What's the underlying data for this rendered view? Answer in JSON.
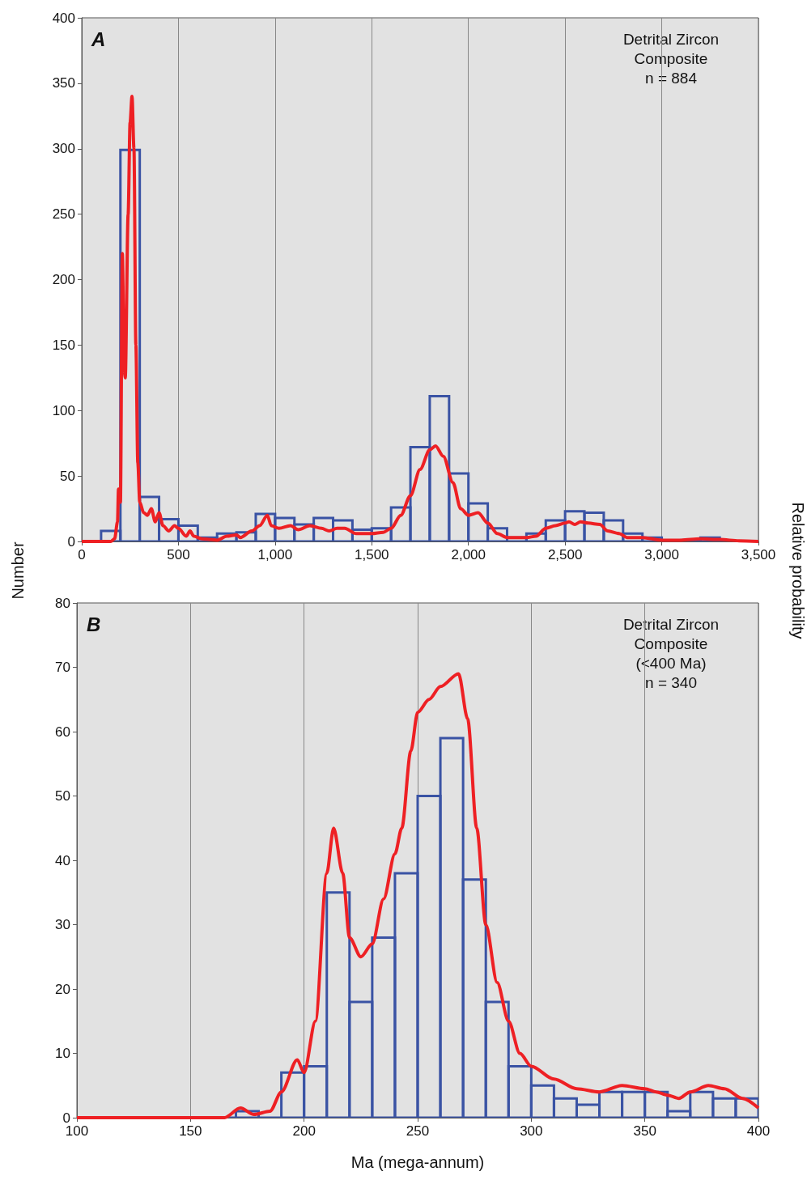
{
  "chart_data": [
    {
      "type": "histogram",
      "title": "A",
      "ylabel": "Number",
      "y2label": "Relative probability",
      "annotations": [
        "Detrital Zircon\nComposite\nn = 884"
      ],
      "bins": [
        0,
        100,
        200,
        300,
        400,
        500,
        600,
        700,
        800,
        900,
        1000,
        1100,
        1200,
        1300,
        1400,
        1500,
        1600,
        1700,
        1800,
        1900,
        2000,
        2100,
        2200,
        2300,
        2400,
        2500,
        2600,
        2700,
        2800,
        2900,
        3000,
        3100,
        3200,
        3300,
        3400,
        3500
      ],
      "series": [
        {
          "color": "#3a53a4",
          "values": [
            0,
            8,
            299,
            34,
            17,
            12,
            3,
            6,
            7,
            21,
            18,
            13,
            18,
            16,
            9,
            10,
            26,
            72,
            111,
            52,
            29,
            10,
            3,
            6,
            16,
            23,
            22,
            16,
            6,
            3,
            null,
            1,
            3,
            0,
            0
          ]
        },
        {
          "type": "line",
          "color": "#ee2024",
          "x": [
            0,
            150,
            170,
            185,
            190,
            200,
            210,
            220,
            225,
            240,
            250,
            260,
            270,
            280,
            290,
            300,
            320,
            340,
            360,
            380,
            400,
            420,
            450,
            480,
            500,
            540,
            560,
            580,
            620,
            700,
            750,
            800,
            820,
            880,
            920,
            960,
            980,
            1020,
            1080,
            1120,
            1180,
            1240,
            1280,
            1320,
            1360,
            1420,
            1500,
            1560,
            1600,
            1650,
            1700,
            1750,
            1800,
            1830,
            1870,
            1920,
            1960,
            2000,
            2050,
            2100,
            2150,
            2200,
            2300,
            2350,
            2400,
            2450,
            2500,
            2520,
            2550,
            2580,
            2620,
            2680,
            2720,
            2780,
            2820,
            2900,
            3000,
            3100,
            3200,
            3300,
            3400,
            3500
          ],
          "values": [
            0,
            0,
            2,
            15,
            40,
            30,
            220,
            130,
            125,
            250,
            320,
            340,
            300,
            150,
            60,
            30,
            22,
            20,
            25,
            15,
            22,
            12,
            8,
            12,
            10,
            4,
            8,
            4,
            2,
            1,
            4,
            5,
            3,
            8,
            12,
            20,
            12,
            10,
            12,
            9,
            12,
            10,
            8,
            10,
            10,
            6,
            6,
            7,
            10,
            20,
            35,
            55,
            70,
            73,
            65,
            45,
            25,
            20,
            22,
            14,
            6,
            3,
            3,
            4,
            10,
            12,
            14,
            15,
            13,
            15,
            14,
            13,
            8,
            6,
            3,
            3,
            1,
            1,
            2,
            1.5,
            0.5,
            0
          ]
        }
      ],
      "xlim": [
        0,
        3500
      ],
      "xticks": [
        0,
        500,
        {
          "value": 1000,
          "label": "1,000"
        },
        {
          "value": 1500,
          "label": "1,500"
        },
        {
          "value": 2000,
          "label": "2,000"
        },
        {
          "value": 2500,
          "label": "2,500"
        },
        {
          "value": 3000,
          "label": "3,000"
        },
        {
          "value": 3500,
          "label": "3,500"
        }
      ],
      "ylim": [
        0,
        400
      ],
      "yticks": [
        0,
        50,
        100,
        150,
        200,
        250,
        300,
        350,
        400
      ],
      "grid": "x"
    },
    {
      "type": "histogram",
      "title": "B",
      "xlabel": "Ma (mega-annum)",
      "annotations": [
        "Detrital Zircon\nComposite\n(<400 Ma)\nn = 340"
      ],
      "bins": [
        100,
        110,
        120,
        130,
        140,
        150,
        160,
        170,
        180,
        190,
        200,
        210,
        220,
        230,
        240,
        250,
        260,
        270,
        280,
        290,
        300,
        310,
        320,
        330,
        340,
        350,
        360,
        370,
        380,
        390,
        400
      ],
      "series": [
        {
          "color": "#3a53a4",
          "values": [
            0,
            0,
            0,
            0,
            0,
            0,
            0,
            1,
            0,
            7,
            8,
            35,
            18,
            28,
            38,
            50,
            59,
            37,
            18,
            8,
            5,
            3,
            2,
            4,
            4,
            4,
            1,
            4,
            3,
            3
          ]
        },
        {
          "type": "line",
          "color": "#ee2024",
          "x": [
            100,
            165,
            172,
            178,
            185,
            190,
            197,
            200,
            205,
            210,
            213,
            217,
            220,
            225,
            230,
            235,
            240,
            243,
            247,
            250,
            255,
            260,
            268,
            272,
            276,
            280,
            285,
            290,
            295,
            300,
            310,
            320,
            330,
            340,
            350,
            355,
            360,
            365,
            370,
            378,
            385,
            393,
            400
          ],
          "values": [
            0,
            0,
            1.5,
            0.5,
            1,
            4,
            9,
            7,
            15,
            38,
            45,
            38,
            28,
            25,
            27,
            34,
            41,
            45,
            57,
            63,
            65,
            67,
            69,
            62,
            45,
            30,
            21,
            15,
            10,
            8,
            6,
            4.5,
            4,
            5,
            4.5,
            4,
            3.5,
            3,
            4,
            5,
            4.5,
            3,
            1.5
          ]
        }
      ],
      "xlim": [
        100,
        400
      ],
      "xticks": [
        100,
        150,
        200,
        250,
        300,
        350,
        400
      ],
      "ylim": [
        0,
        80
      ],
      "yticks": [
        0,
        10,
        20,
        30,
        40,
        50,
        60,
        70,
        80
      ],
      "grid": "x"
    }
  ]
}
